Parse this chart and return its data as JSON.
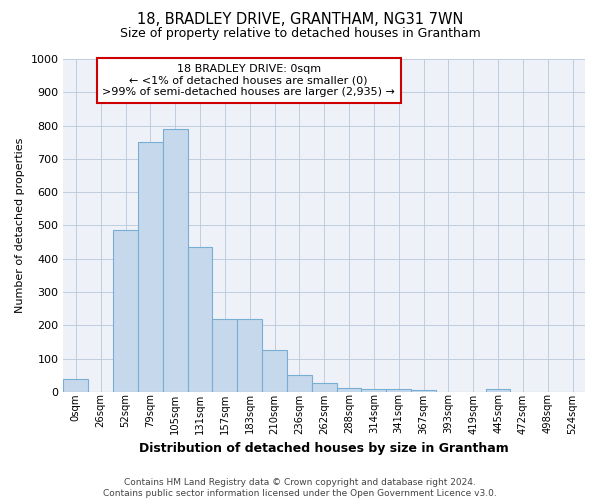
{
  "title1": "18, BRADLEY DRIVE, GRANTHAM, NG31 7WN",
  "title2": "Size of property relative to detached houses in Grantham",
  "xlabel": "Distribution of detached houses by size in Grantham",
  "ylabel": "Number of detached properties",
  "bar_color": "#c6d9ec",
  "bar_edge_color": "#7aadd4",
  "background_color": "#eef2f8",
  "grid_color": "#b8c8dc",
  "annotation_text": "18 BRADLEY DRIVE: 0sqm\n← <1% of detached houses are smaller (0)\n>99% of semi-detached houses are larger (2,935) →",
  "annotation_box_color": "#cc0000",
  "categories": [
    "0sqm",
    "26sqm",
    "52sqm",
    "79sqm",
    "105sqm",
    "131sqm",
    "157sqm",
    "183sqm",
    "210sqm",
    "236sqm",
    "262sqm",
    "288sqm",
    "314sqm",
    "341sqm",
    "367sqm",
    "393sqm",
    "419sqm",
    "445sqm",
    "472sqm",
    "498sqm",
    "524sqm"
  ],
  "values": [
    40,
    0,
    485,
    750,
    790,
    435,
    220,
    220,
    125,
    50,
    28,
    13,
    10,
    8,
    5,
    0,
    0,
    8,
    0,
    0,
    0
  ],
  "ylim": [
    0,
    1000
  ],
  "yticks": [
    0,
    100,
    200,
    300,
    400,
    500,
    600,
    700,
    800,
    900,
    1000
  ],
  "footer_text": "Contains HM Land Registry data © Crown copyright and database right 2024.\nContains public sector information licensed under the Open Government Licence v3.0."
}
